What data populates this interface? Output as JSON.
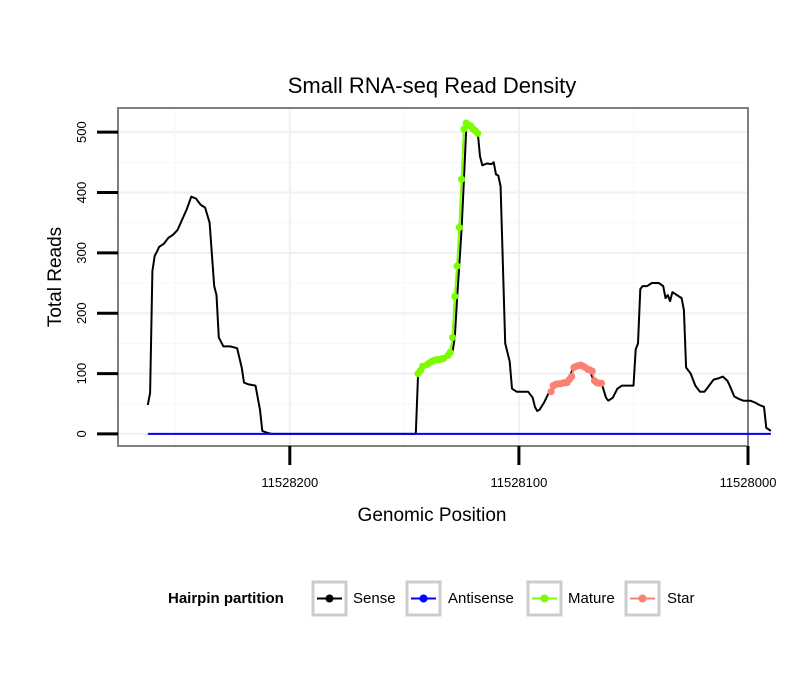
{
  "chart_data": {
    "type": "line",
    "title": "Small RNA-seq Read Density",
    "xlabel": "Genomic Position",
    "ylabel": "Total Reads",
    "xlim": [
      11528275,
      11528000
    ],
    "ylim": [
      -20,
      540
    ],
    "x_reversed": true,
    "x_ticks": [
      11528200,
      11528100,
      11528000
    ],
    "x_tick_labels": [
      "11528200",
      "11528100",
      "11528000"
    ],
    "y_ticks": [
      0,
      100,
      200,
      300,
      400,
      500
    ],
    "y_tick_labels": [
      "0",
      "100",
      "200",
      "300",
      "400",
      "500"
    ],
    "grid": true,
    "legend": {
      "title": "Hairpin partition",
      "position": "bottom",
      "entries": [
        "Sense",
        "Antisense",
        "Mature",
        "Star"
      ]
    },
    "series": [
      {
        "name": "Sense",
        "color": "#000000",
        "style": "line",
        "points": [
          [
            11528262,
            48
          ],
          [
            11528261,
            68
          ],
          [
            11528260,
            270
          ],
          [
            11528259,
            295
          ],
          [
            11528258,
            302
          ],
          [
            11528257,
            310
          ],
          [
            11528255,
            315
          ],
          [
            11528253,
            325
          ],
          [
            11528251,
            330
          ],
          [
            11528249,
            338
          ],
          [
            11528247,
            355
          ],
          [
            11528245,
            372
          ],
          [
            11528243,
            393
          ],
          [
            11528241,
            390
          ],
          [
            11528239,
            380
          ],
          [
            11528237,
            375
          ],
          [
            11528235,
            350
          ],
          [
            11528233,
            245
          ],
          [
            11528232,
            230
          ],
          [
            11528231,
            160
          ],
          [
            11528229,
            145
          ],
          [
            11528226,
            145
          ],
          [
            11528223,
            142
          ],
          [
            11528221,
            110
          ],
          [
            11528220,
            85
          ],
          [
            11528218,
            82
          ],
          [
            11528215,
            80
          ],
          [
            11528213,
            40
          ],
          [
            11528212,
            5
          ],
          [
            11528210,
            2
          ],
          [
            11528208,
            0
          ],
          [
            11528190,
            0
          ],
          [
            11528170,
            0
          ],
          [
            11528150,
            0
          ],
          [
            11528145,
            0
          ],
          [
            11528144,
            100
          ],
          [
            11528142,
            110
          ],
          [
            11528139,
            115
          ],
          [
            11528136,
            120
          ],
          [
            11528132,
            125
          ],
          [
            11528130,
            130
          ],
          [
            11528129,
            135
          ],
          [
            11528128,
            160
          ],
          [
            11528127,
            225
          ],
          [
            11528126,
            280
          ],
          [
            11528125,
            340
          ],
          [
            11528124,
            420
          ],
          [
            11528123,
            505
          ],
          [
            11528122,
            515
          ],
          [
            11528121,
            512
          ],
          [
            11528120,
            508
          ],
          [
            11528119,
            505
          ],
          [
            11528118,
            500
          ],
          [
            11528117,
            460
          ],
          [
            11528116,
            445
          ],
          [
            11528114,
            448
          ],
          [
            11528112,
            447
          ],
          [
            11528111,
            450
          ],
          [
            11528110,
            430
          ],
          [
            11528109,
            428
          ],
          [
            11528108,
            410
          ],
          [
            11528107,
            280
          ],
          [
            11528106,
            150
          ],
          [
            11528104,
            120
          ],
          [
            11528103,
            75
          ],
          [
            11528101,
            70
          ],
          [
            11528099,
            70
          ],
          [
            11528096,
            70
          ],
          [
            11528094,
            60
          ],
          [
            11528093,
            45
          ],
          [
            11528092,
            38
          ],
          [
            11528091,
            40
          ],
          [
            11528089,
            52
          ],
          [
            11528087,
            68
          ],
          [
            11528085,
            75
          ],
          [
            11528083,
            80
          ],
          [
            11528080,
            85
          ],
          [
            11528078,
            95
          ],
          [
            11528076,
            110
          ],
          [
            11528074,
            112
          ],
          [
            11528071,
            108
          ],
          [
            11528069,
            105
          ],
          [
            11528067,
            85
          ],
          [
            11528064,
            85
          ],
          [
            11528062,
            60
          ],
          [
            11528061,
            55
          ],
          [
            11528059,
            60
          ],
          [
            11528057,
            75
          ],
          [
            11528055,
            80
          ],
          [
            11528052,
            80
          ],
          [
            11528050,
            80
          ],
          [
            11528049,
            140
          ],
          [
            11528048,
            150
          ],
          [
            11528047,
            240
          ],
          [
            11528046,
            245
          ],
          [
            11528044,
            245
          ],
          [
            11528042,
            250
          ],
          [
            11528039,
            250
          ],
          [
            11528037,
            245
          ],
          [
            11528036,
            225
          ],
          [
            11528035,
            230
          ],
          [
            11528034,
            220
          ],
          [
            11528033,
            235
          ],
          [
            11528031,
            230
          ],
          [
            11528029,
            225
          ],
          [
            11528028,
            205
          ],
          [
            11528027,
            110
          ],
          [
            11528025,
            100
          ],
          [
            11528023,
            80
          ],
          [
            11528021,
            70
          ],
          [
            11528019,
            70
          ],
          [
            11528017,
            80
          ],
          [
            11528015,
            90
          ],
          [
            11528013,
            92
          ],
          [
            11528011,
            95
          ],
          [
            11528009,
            88
          ],
          [
            11528008,
            80
          ],
          [
            11528006,
            62
          ],
          [
            11528004,
            58
          ],
          [
            11528002,
            55
          ],
          [
            11527999,
            55
          ],
          [
            11527997,
            52
          ],
          [
            11527995,
            48
          ],
          [
            11527993,
            45
          ],
          [
            11527992,
            10
          ],
          [
            11527990,
            5
          ]
        ]
      },
      {
        "name": "Antisense",
        "color": "#0000ff",
        "style": "line",
        "points": [
          [
            11528262,
            0
          ],
          [
            11527990,
            0
          ]
        ]
      },
      {
        "name": "Mature",
        "color": "#7cfc00",
        "style": "line+points",
        "points": [
          [
            11528144,
            100
          ],
          [
            11528143,
            105
          ],
          [
            11528142,
            112
          ],
          [
            11528140,
            115
          ],
          [
            11528139,
            118
          ],
          [
            11528138,
            120
          ],
          [
            11528137,
            122
          ],
          [
            11528136,
            123
          ],
          [
            11528135,
            123
          ],
          [
            11528134,
            124
          ],
          [
            11528133,
            125
          ],
          [
            11528131,
            130
          ],
          [
            11528130,
            135
          ],
          [
            11528129,
            160
          ],
          [
            11528128,
            228
          ],
          [
            11528127,
            278
          ],
          [
            11528126,
            342
          ],
          [
            11528125,
            422
          ],
          [
            11528124,
            505
          ],
          [
            11528123,
            515
          ],
          [
            11528122,
            512
          ],
          [
            11528121,
            510
          ],
          [
            11528120,
            505
          ],
          [
            11528119,
            502
          ],
          [
            11528118,
            498
          ]
        ]
      },
      {
        "name": "Star",
        "color": "#fa8072",
        "style": "line+points",
        "points": [
          [
            11528086,
            70
          ],
          [
            11528085,
            80
          ],
          [
            11528084,
            82
          ],
          [
            11528083,
            83
          ],
          [
            11528082,
            83
          ],
          [
            11528081,
            84
          ],
          [
            11528080,
            85
          ],
          [
            11528079,
            85
          ],
          [
            11528078,
            90
          ],
          [
            11528077,
            95
          ],
          [
            11528076,
            110
          ],
          [
            11528075,
            112
          ],
          [
            11528074,
            113
          ],
          [
            11528073,
            114
          ],
          [
            11528072,
            112
          ],
          [
            11528071,
            110
          ],
          [
            11528070,
            107
          ],
          [
            11528069,
            106
          ],
          [
            11528068,
            104
          ],
          [
            11528067,
            88
          ],
          [
            11528066,
            85
          ],
          [
            11528065,
            84
          ],
          [
            11528064,
            84
          ]
        ]
      }
    ]
  }
}
